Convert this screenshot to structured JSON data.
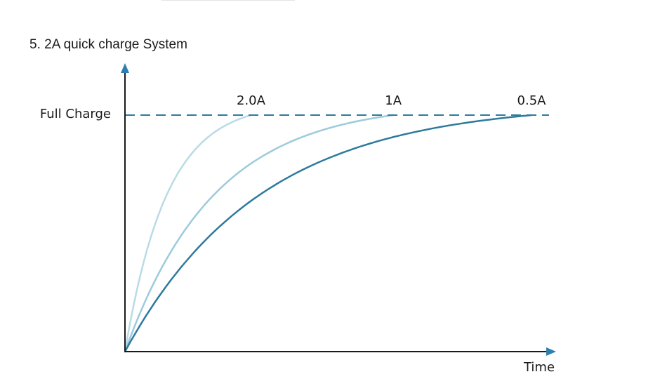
{
  "page": {
    "title": "5. 2A quick charge System"
  },
  "chart_data": {
    "type": "line",
    "title": "5. 2A quick charge System",
    "xlabel": "Time",
    "ylabel": "",
    "y_reference_label": "Full Charge",
    "grid": false,
    "series": [
      {
        "name": "2.0A",
        "color": "#b9dbe6",
        "end_time": 0.31
      },
      {
        "name": "1A",
        "color": "#9ccbdc",
        "end_time": 0.66
      },
      {
        "name": "0.5A",
        "color": "#2e7a9c",
        "end_time": 1.0
      }
    ],
    "colors": {
      "axis": "#1a1a1a",
      "axis_arrow": "#2e7fb0",
      "reference_line": "#2e7a9c"
    }
  }
}
